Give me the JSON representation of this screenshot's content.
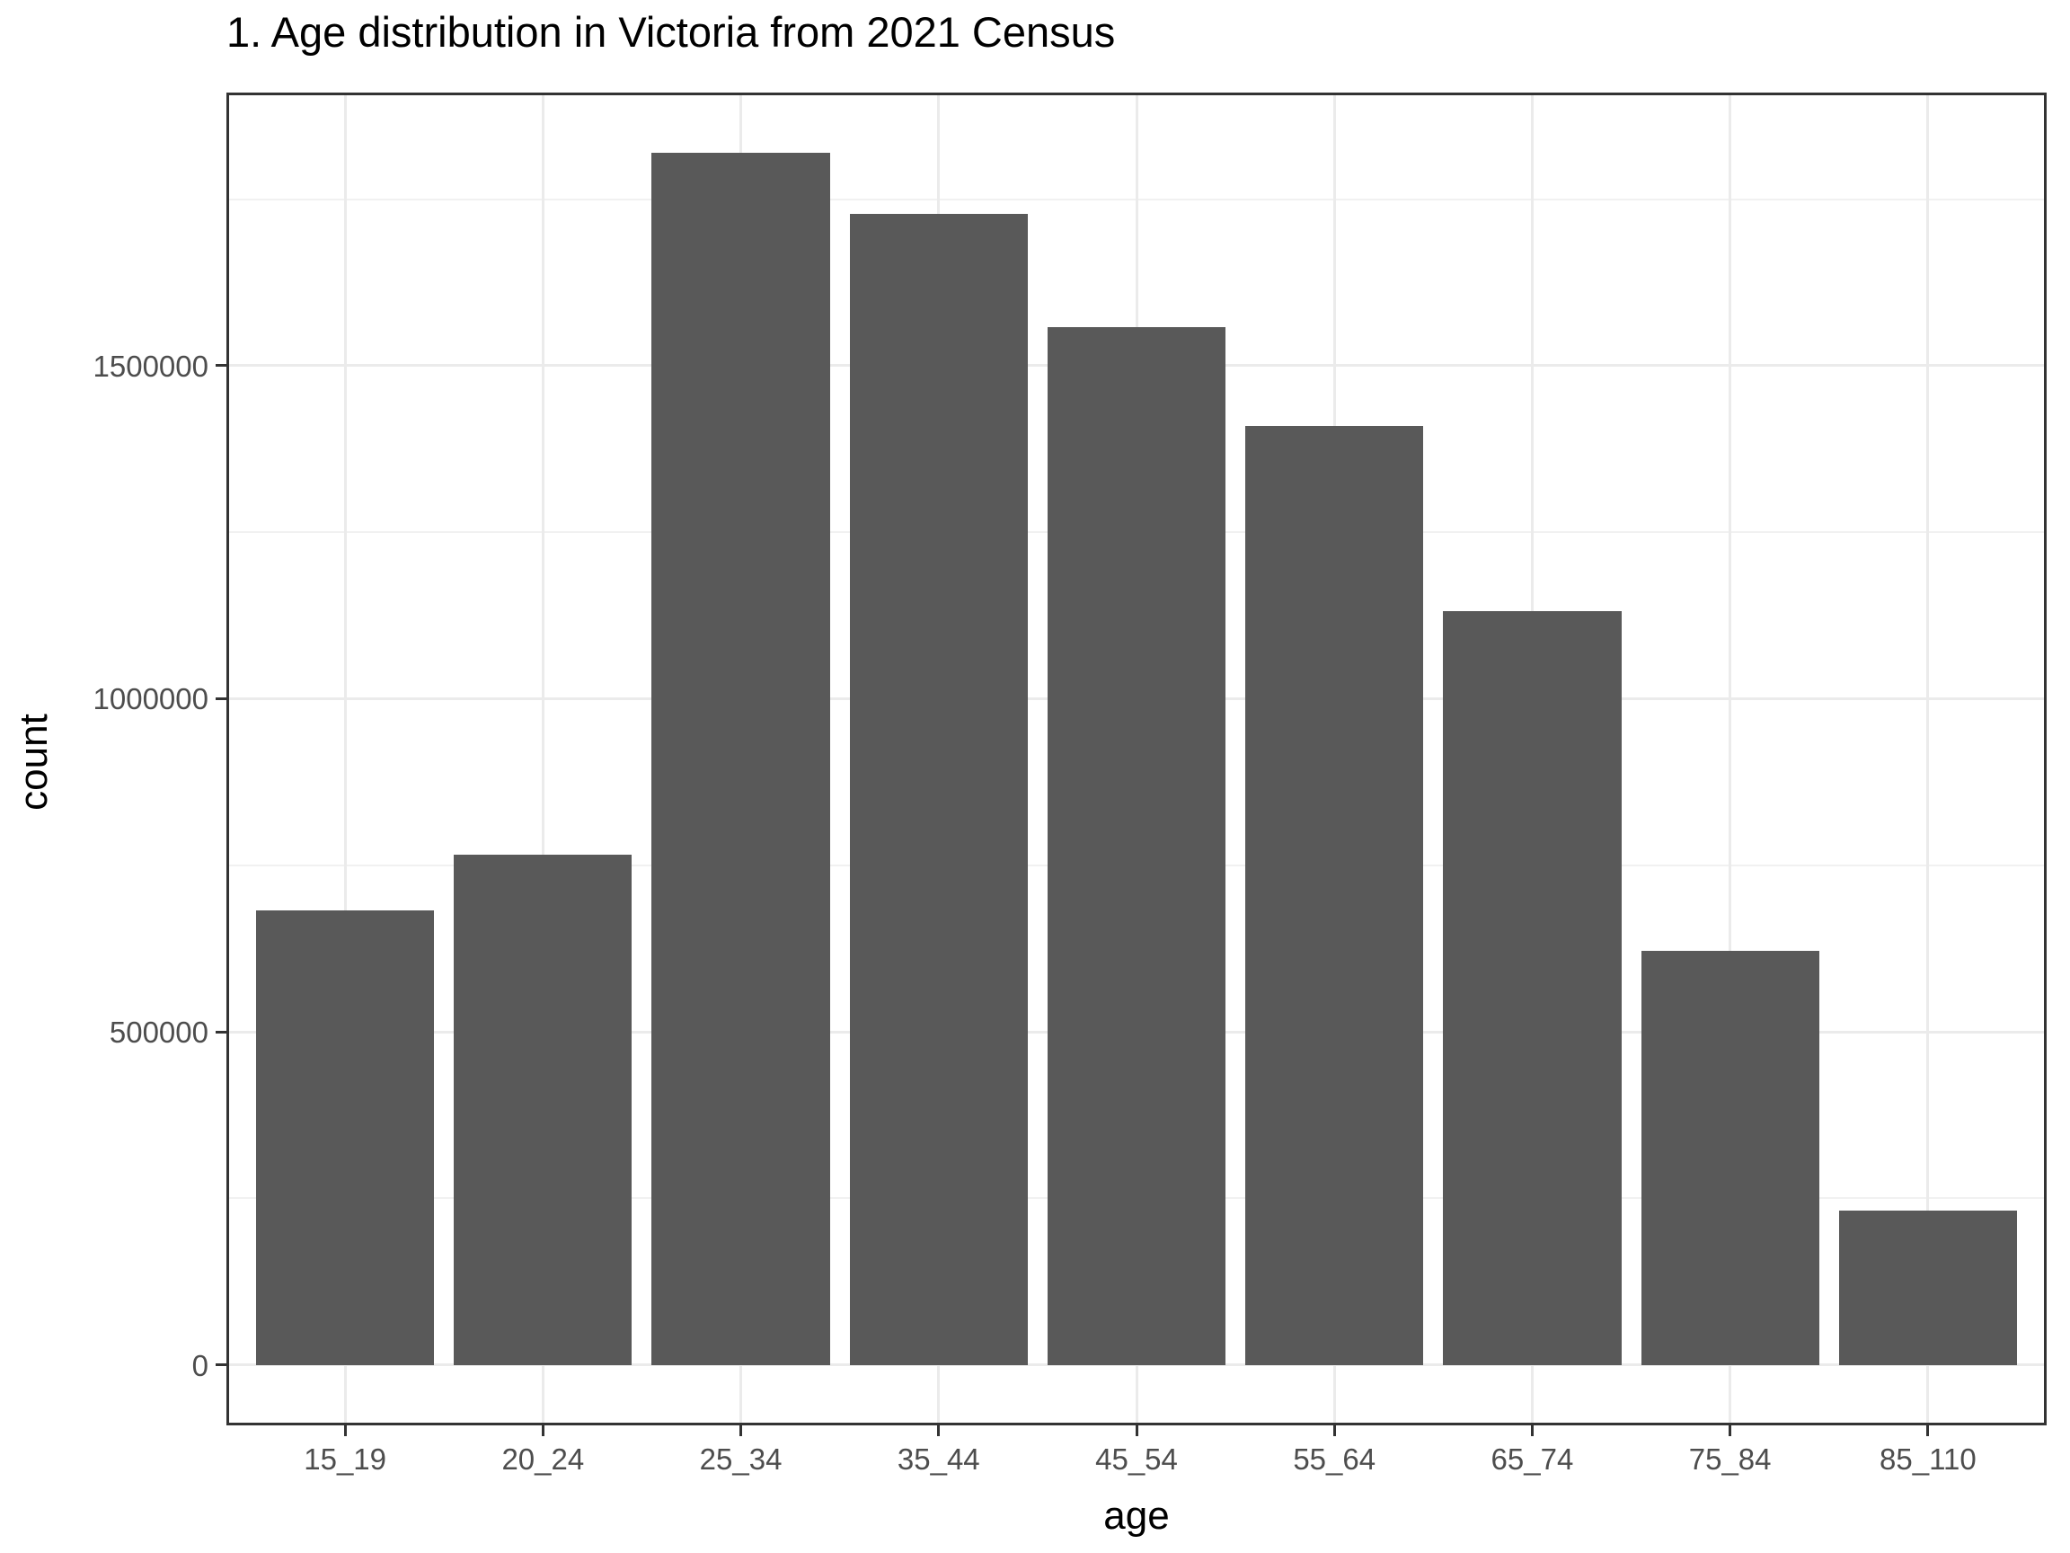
{
  "chart_data": {
    "type": "bar",
    "title": "1. Age distribution in Victoria from 2021 Census",
    "xlabel": "age",
    "ylabel": "count",
    "categories": [
      "15_19",
      "20_24",
      "25_34",
      "35_44",
      "45_54",
      "55_64",
      "65_74",
      "75_84",
      "85_110"
    ],
    "values": [
      682000,
      766000,
      1819000,
      1728000,
      1558000,
      1410000,
      1131000,
      621000,
      232000
    ],
    "y_major_ticks": [
      0,
      500000,
      1000000,
      1500000
    ],
    "y_tick_labels": [
      "0",
      "500000",
      "1000000",
      "1500000"
    ],
    "y_minor_ticks": [
      250000,
      750000,
      1250000,
      1750000
    ],
    "ylim": [
      -90950,
      1909950
    ],
    "grid": "major and minor horizontal, major vertical at category centers",
    "legend": false,
    "bar_fill_color": "#595959",
    "panel_border_color": "#333333",
    "gridline_color": "#ebebeb",
    "tick_label_color": "#4d4d4d",
    "title_color": "#000000"
  }
}
